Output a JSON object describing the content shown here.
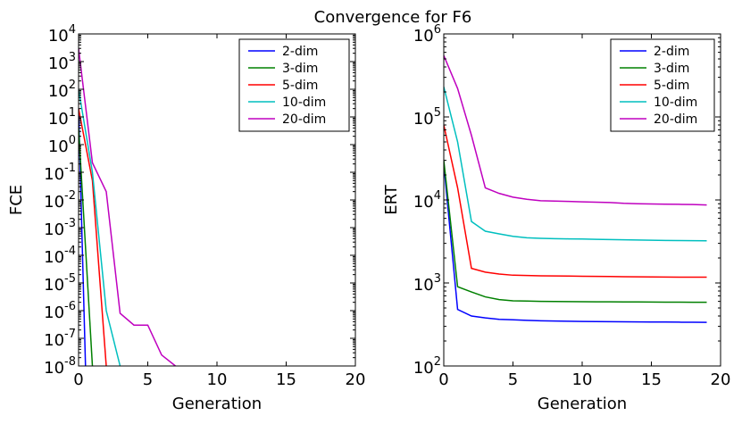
{
  "title": "Convergence for F6",
  "colors": {
    "2-dim": "#0000ff",
    "3-dim": "#008000",
    "5-dim": "#ff0000",
    "10-dim": "#00bfbf",
    "20-dim": "#bf00bf"
  },
  "chart_data": [
    {
      "type": "line",
      "yscale": "log",
      "xlabel": "Generation",
      "ylabel": "FCE",
      "xlim": [
        0,
        20
      ],
      "ylim": [
        1e-08,
        10000.0
      ],
      "xticks": [
        0,
        5,
        10,
        15,
        20
      ],
      "yticks": [
        {
          "base": "10",
          "exp": "-8",
          "value": 1e-08
        },
        {
          "base": "10",
          "exp": "-7",
          "value": 1e-07
        },
        {
          "base": "10",
          "exp": "-6",
          "value": 1e-06
        },
        {
          "base": "10",
          "exp": "-5",
          "value": 1e-05
        },
        {
          "base": "10",
          "exp": "-4",
          "value": 0.0001
        },
        {
          "base": "10",
          "exp": "-3",
          "value": 0.001
        },
        {
          "base": "10",
          "exp": "-2",
          "value": 0.01
        },
        {
          "base": "10",
          "exp": "-1",
          "value": 0.1
        },
        {
          "base": "10",
          "exp": "0",
          "value": 1
        },
        {
          "base": "10",
          "exp": "1",
          "value": 10
        },
        {
          "base": "10",
          "exp": "2",
          "value": 100
        },
        {
          "base": "10",
          "exp": "3",
          "value": 1000
        },
        {
          "base": "10",
          "exp": "4",
          "value": 10000
        }
      ],
      "legend": "top-right",
      "series": [
        {
          "name": "2-dim",
          "x": [
            0,
            0.5
          ],
          "y": [
            20,
            1e-08
          ]
        },
        {
          "name": "3-dim",
          "x": [
            0,
            1
          ],
          "y": [
            4,
            1e-08
          ]
        },
        {
          "name": "5-dim",
          "x": [
            0,
            1,
            2
          ],
          "y": [
            20,
            0.05,
            1e-08
          ]
        },
        {
          "name": "10-dim",
          "x": [
            0,
            1,
            2,
            3
          ],
          "y": [
            100,
            0.1,
            1e-06,
            1e-08
          ]
        },
        {
          "name": "20-dim",
          "x": [
            0,
            1,
            2,
            3,
            4,
            5,
            6,
            7
          ],
          "y": [
            3000,
            0.22,
            0.02,
            8e-07,
            3e-07,
            3e-07,
            2.5e-08,
            1e-08
          ]
        }
      ]
    },
    {
      "type": "line",
      "yscale": "log",
      "xlabel": "Generation",
      "ylabel": "ERT",
      "xlim": [
        0,
        20
      ],
      "ylim": [
        100,
        1000000
      ],
      "xticks": [
        0,
        5,
        10,
        15,
        20
      ],
      "yticks": [
        {
          "base": "10",
          "exp": "2",
          "value": 100
        },
        {
          "base": "10",
          "exp": "3",
          "value": 1000
        },
        {
          "base": "10",
          "exp": "4",
          "value": 10000
        },
        {
          "base": "10",
          "exp": "5",
          "value": 100000
        },
        {
          "base": "10",
          "exp": "6",
          "value": 1000000
        }
      ],
      "legend": "top-right",
      "series": [
        {
          "name": "2-dim",
          "x": [
            0,
            1,
            2,
            3,
            4,
            5,
            6,
            7,
            8,
            9,
            10,
            11,
            12,
            13,
            14,
            15,
            16,
            17,
            18,
            19
          ],
          "y": [
            27000,
            480,
            400,
            380,
            365,
            360,
            355,
            350,
            348,
            346,
            344,
            343,
            342,
            341,
            340,
            339,
            338,
            337,
            336,
            335
          ]
        },
        {
          "name": "3-dim",
          "x": [
            0,
            1,
            2,
            3,
            4,
            5,
            6,
            7,
            8,
            9,
            10,
            11,
            12,
            13,
            14,
            15,
            16,
            17,
            18,
            19
          ],
          "y": [
            30000,
            900,
            780,
            680,
            630,
            610,
            605,
            600,
            598,
            596,
            594,
            593,
            592,
            591,
            590,
            589,
            588,
            587,
            586,
            585
          ]
        },
        {
          "name": "5-dim",
          "x": [
            0,
            1,
            2,
            3,
            4,
            5,
            6,
            7,
            8,
            9,
            10,
            11,
            12,
            13,
            14,
            15,
            16,
            17,
            18,
            19
          ],
          "y": [
            80000,
            14000,
            1500,
            1350,
            1280,
            1240,
            1230,
            1220,
            1215,
            1210,
            1205,
            1200,
            1195,
            1190,
            1185,
            1180,
            1178,
            1176,
            1175,
            1175
          ]
        },
        {
          "name": "10-dim",
          "x": [
            0,
            1,
            2,
            3,
            4,
            5,
            6,
            7,
            8,
            9,
            10,
            11,
            12,
            13,
            14,
            15,
            16,
            17,
            18,
            19
          ],
          "y": [
            230000,
            50000,
            5500,
            4200,
            3900,
            3650,
            3500,
            3450,
            3420,
            3400,
            3380,
            3350,
            3330,
            3310,
            3290,
            3270,
            3250,
            3240,
            3230,
            3220
          ]
        },
        {
          "name": "20-dim",
          "x": [
            0,
            1,
            2,
            3,
            4,
            5,
            6,
            7,
            8,
            9,
            10,
            11,
            12,
            13,
            14,
            15,
            16,
            17,
            18,
            19
          ],
          "y": [
            550000,
            220000,
            60000,
            14000,
            12000,
            10800,
            10200,
            9800,
            9700,
            9600,
            9500,
            9400,
            9300,
            9100,
            9000,
            8950,
            8900,
            8850,
            8800,
            8700
          ]
        }
      ]
    }
  ]
}
